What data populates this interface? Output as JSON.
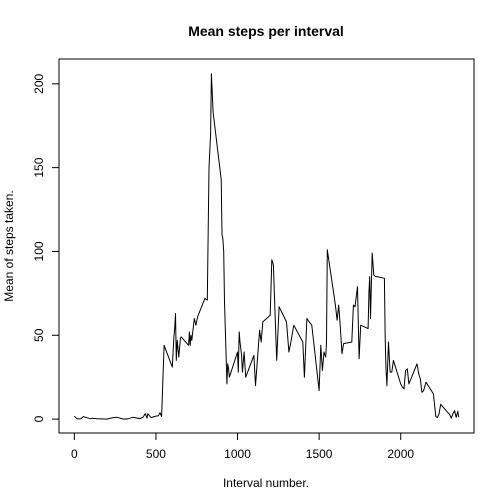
{
  "chart_data": {
    "type": "line",
    "title": "Mean steps per interval",
    "xlabel": "Interval number.",
    "ylabel": "Mean of steps taken.",
    "xlim": [
      -94,
      2449
    ],
    "ylim": [
      -8.3,
      214.8
    ],
    "xticks": [
      0,
      500,
      1000,
      1500,
      2000
    ],
    "yticks": [
      0,
      50,
      100,
      150,
      200
    ],
    "grid": false,
    "line_color": "#000000",
    "series": [
      {
        "x": [
          0,
          15,
          25,
          40,
          55,
          100,
          110,
          140,
          200,
          230,
          260,
          300,
          330,
          360,
          400,
          420,
          435,
          445,
          450,
          470,
          500,
          515,
          525,
          535,
          550,
          600,
          610,
          615,
          620,
          625,
          630,
          640,
          650,
          655,
          700,
          705,
          710,
          715,
          720,
          735,
          745,
          755,
          800,
          815,
          825,
          835,
          840,
          850,
          900,
          905,
          910,
          915,
          920,
          930,
          935,
          940,
          945,
          950,
          1000,
          1005,
          1010,
          1015,
          1025,
          1030,
          1040,
          1050,
          1100,
          1110,
          1120,
          1135,
          1145,
          1155,
          1200,
          1205,
          1210,
          1220,
          1230,
          1240,
          1255,
          1300,
          1315,
          1325,
          1345,
          1400,
          1410,
          1425,
          1440,
          1455,
          1500,
          1510,
          1520,
          1530,
          1540,
          1545,
          1550,
          1600,
          1610,
          1620,
          1630,
          1640,
          1650,
          1700,
          1710,
          1720,
          1735,
          1745,
          1755,
          1800,
          1805,
          1810,
          1815,
          1825,
          1835,
          1845,
          1855,
          1900,
          1905,
          1910,
          1915,
          1925,
          1935,
          1945,
          1955,
          2000,
          2010,
          2020,
          2030,
          2040,
          2050,
          2100,
          2110,
          2120,
          2130,
          2140,
          2155,
          2200,
          2215,
          2225,
          2235,
          2245,
          2300,
          2310,
          2320,
          2330,
          2340,
          2350,
          2355
        ],
        "y": [
          1.7,
          0.3,
          0.1,
          0.2,
          1.5,
          0.2,
          0.5,
          0.2,
          0.0,
          0.7,
          1.1,
          0.0,
          0.2,
          1.1,
          0.3,
          1.0,
          3.2,
          0.5,
          3.2,
          0.9,
          1.8,
          2.0,
          3.8,
          1.5,
          44.0,
          31.0,
          49.0,
          54.0,
          63.0,
          35.0,
          47.0,
          37.0,
          48.0,
          49.0,
          44.0,
          52.0,
          44.0,
          50.0,
          47.0,
          60.0,
          56.0,
          61.0,
          72.0,
          71.0,
          150.0,
          170.0,
          206.0,
          183.0,
          143.0,
          110.0,
          108.0,
          100.0,
          70.0,
          38.0,
          21.0,
          33.0,
          30.0,
          25.0,
          40.0,
          28.0,
          52.0,
          46.0,
          38.0,
          28.0,
          40.0,
          25.0,
          38.0,
          20.0,
          33.0,
          53.0,
          46.0,
          58.0,
          62.0,
          78.0,
          95.0,
          92.0,
          62.0,
          35.0,
          67.0,
          58.0,
          40.0,
          45.0,
          56.0,
          46.0,
          25.0,
          60.0,
          58.0,
          56.0,
          17.0,
          44.0,
          29.0,
          40.0,
          37.0,
          46.0,
          101.0,
          68.0,
          59.0,
          68.0,
          55.0,
          39.0,
          45.0,
          46.0,
          68.0,
          67.0,
          79.0,
          36.0,
          56.0,
          54.0,
          75.0,
          85.0,
          60.0,
          99.0,
          86.0,
          85.0,
          85.0,
          84.0,
          48.0,
          30.0,
          20.0,
          46.0,
          28.0,
          28.0,
          35.0,
          21.0,
          19.0,
          18.0,
          29.0,
          30.0,
          21.0,
          33.0,
          27.0,
          24.0,
          16.0,
          17.0,
          22.0,
          15.0,
          1.6,
          0.9,
          3.3,
          8.8,
          2.6,
          0.6,
          3.1,
          5.0,
          1.0,
          4.7,
          1.1
        ]
      }
    ]
  }
}
